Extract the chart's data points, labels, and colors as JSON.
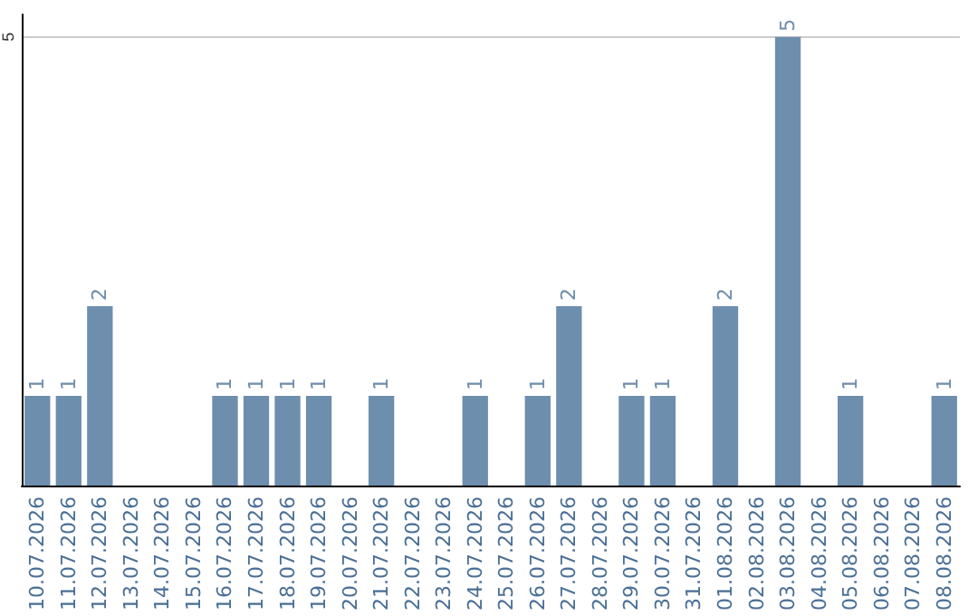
{
  "chart_data": {
    "type": "bar",
    "categories": [
      "10.07.2026",
      "11.07.2026",
      "12.07.2026",
      "13.07.2026",
      "14.07.2026",
      "15.07.2026",
      "16.07.2026",
      "17.07.2026",
      "18.07.2026",
      "19.07.2026",
      "20.07.2026",
      "21.07.2026",
      "22.07.2026",
      "23.07.2026",
      "24.07.2026",
      "25.07.2026",
      "26.07.2026",
      "27.07.2026",
      "28.07.2026",
      "29.07.2026",
      "30.07.2026",
      "31.07.2026",
      "01.08.2026",
      "02.08.2026",
      "03.08.2026",
      "04.08.2026",
      "05.08.2026",
      "06.08.2026",
      "07.08.2026",
      "08.08.2026"
    ],
    "values": [
      1,
      1,
      2,
      0,
      0,
      0,
      1,
      1,
      1,
      1,
      0,
      1,
      0,
      0,
      1,
      0,
      1,
      2,
      0,
      1,
      1,
      0,
      2,
      0,
      5,
      0,
      1,
      0,
      0,
      1
    ],
    "value_labels": [
      "1",
      "1",
      "2",
      null,
      null,
      null,
      "1",
      "1",
      "1",
      "1",
      null,
      "1",
      null,
      null,
      "1",
      null,
      "1",
      "2",
      null,
      "1",
      "1",
      null,
      "2",
      null,
      "5",
      null,
      "1",
      null,
      null,
      "1"
    ],
    "color": "#6e8eae",
    "ylim": [
      0,
      5.25
    ],
    "yticks": [
      5
    ],
    "grid": "y"
  }
}
